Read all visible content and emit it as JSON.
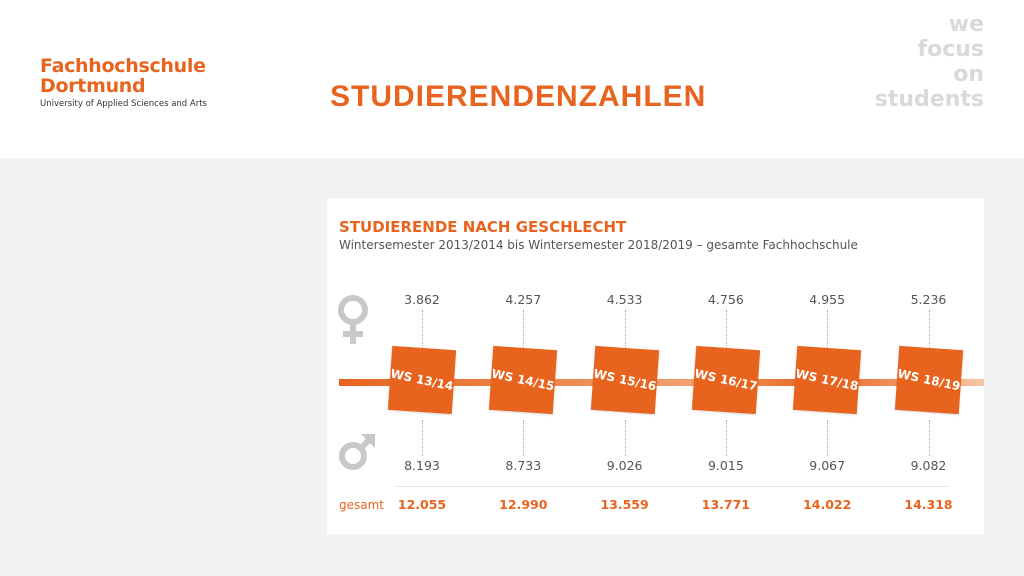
{
  "logo": {
    "line1": "Fachhochschule",
    "line2": "Dortmund",
    "line3": "University of Applied Sciences and Arts"
  },
  "slide": {
    "title": "STUDIERENDENZAHLEN",
    "slogan": [
      "we",
      "focus",
      "on",
      "students"
    ]
  },
  "card": {
    "title": "STUDIERENDE NACH GESCHLECHT",
    "subtitle": "Wintersemester 2013/2014 bis Wintersemester 2018/2019 – gesamte Fachhochschule",
    "total_label": "gesamt",
    "female_icon": "female-symbol-icon",
    "male_icon": "male-symbol-icon"
  },
  "chart_data": {
    "type": "table",
    "title": "STUDIERENDE NACH GESCHLECHT",
    "subtitle": "Wintersemester 2013/2014 bis Wintersemester 2018/2019 – gesamte Fachhochschule",
    "categories": [
      "WS 13/14",
      "WS 14/15",
      "WS 15/16",
      "WS 16/17",
      "WS 17/18",
      "WS 18/19"
    ],
    "series": [
      {
        "name": "female",
        "values": [
          3862,
          4257,
          4533,
          4756,
          4955,
          5236
        ],
        "labels": [
          "3.862",
          "4.257",
          "4.533",
          "4.756",
          "4.955",
          "5.236"
        ]
      },
      {
        "name": "male",
        "values": [
          8193,
          8733,
          9026,
          9015,
          9067,
          9082
        ],
        "labels": [
          "8.193",
          "8.733",
          "9.026",
          "9.015",
          "9.067",
          "9.082"
        ]
      },
      {
        "name": "gesamt",
        "values": [
          12055,
          12990,
          13559,
          13771,
          14022,
          14318
        ],
        "labels": [
          "12.055",
          "12.990",
          "13.559",
          "13.771",
          "14.022",
          "14.318"
        ]
      }
    ]
  },
  "colors": {
    "accent": "#e8641e",
    "slogan": "#d9d9d9",
    "symbol": "#c8c8c8"
  }
}
